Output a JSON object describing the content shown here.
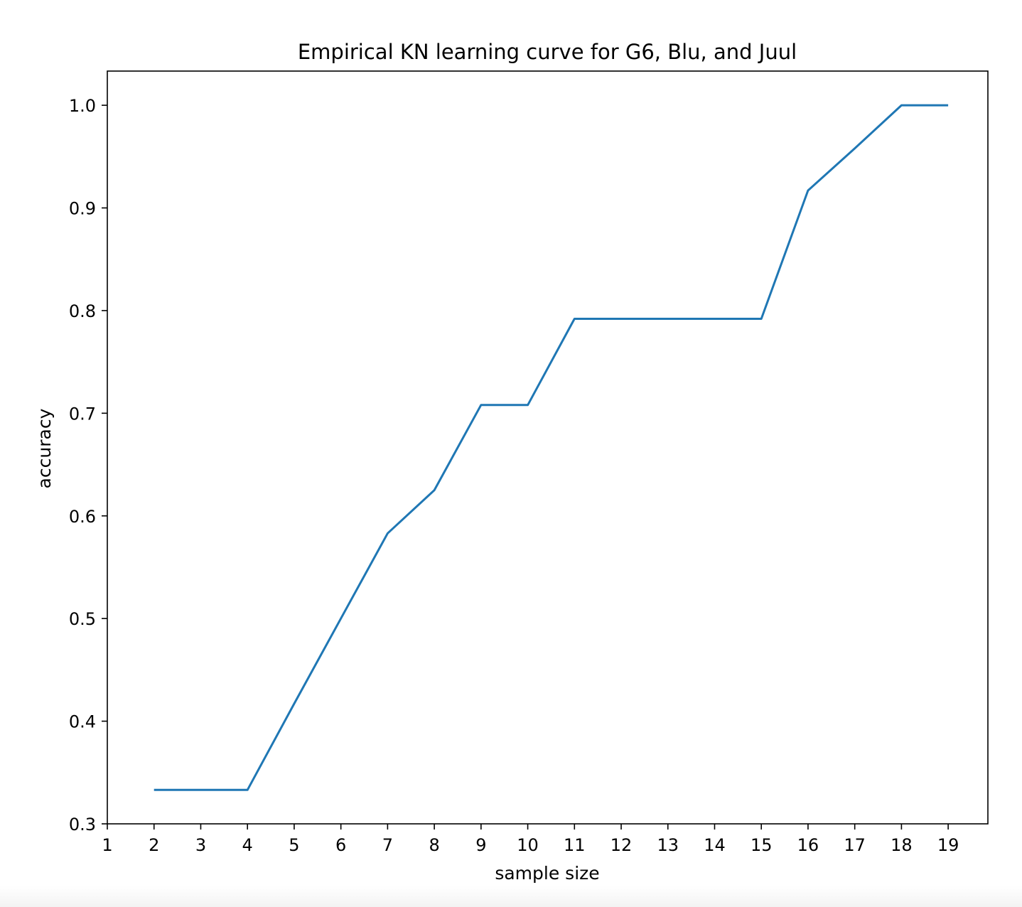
{
  "chart_data": {
    "type": "line",
    "title": "Empirical KN learning curve for G6, Blu, and Juul",
    "xlabel": "sample size",
    "ylabel": "accuracy",
    "xlim": [
      1,
      19.85
    ],
    "ylim": [
      0.3,
      1.0333
    ],
    "xticks": [
      1,
      2,
      3,
      4,
      5,
      6,
      7,
      8,
      9,
      10,
      11,
      12,
      13,
      14,
      15,
      16,
      17,
      18,
      19
    ],
    "yticks": [
      0.3,
      0.4,
      0.5,
      0.6,
      0.7,
      0.8,
      0.9,
      1.0
    ],
    "ytick_labels": [
      "0.3",
      "0.4",
      "0.5",
      "0.6",
      "0.7",
      "0.8",
      "0.9",
      "1.0"
    ],
    "grid": false,
    "series": [
      {
        "color": "#1f77b4",
        "x": [
          2,
          3,
          4,
          5,
          6,
          7,
          8,
          9,
          10,
          11,
          12,
          13,
          14,
          15,
          16,
          17,
          18,
          19
        ],
        "y": [
          0.333,
          0.333,
          0.333,
          0.417,
          0.5,
          0.583,
          0.625,
          0.708,
          0.708,
          0.792,
          0.792,
          0.792,
          0.792,
          0.792,
          0.917,
          0.958,
          1.0,
          1.0
        ]
      }
    ]
  }
}
